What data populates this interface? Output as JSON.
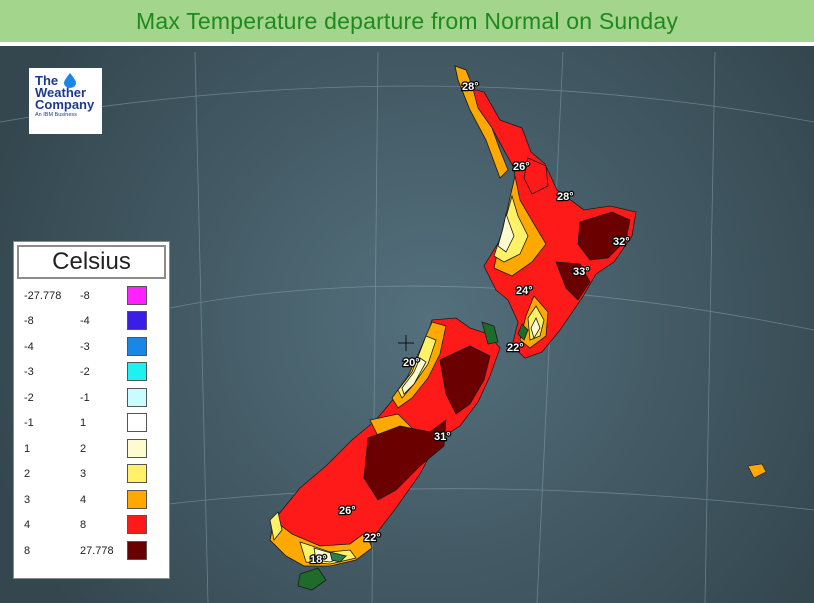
{
  "title": "Max Temperature departure from Normal on Sunday",
  "logo": {
    "line1": "The",
    "line2": "Weather",
    "line3": "Company",
    "subtitle": "An IBM Business",
    "icon": "water-drop-icon"
  },
  "legend": {
    "title": "Celsius",
    "rows": [
      {
        "min": "-27.778",
        "max": "-8",
        "color": "#ff22ff"
      },
      {
        "min": "-8",
        "max": "-4",
        "color": "#3a1ee6"
      },
      {
        "min": "-4",
        "max": "-3",
        "color": "#1a86e8"
      },
      {
        "min": "-3",
        "max": "-2",
        "color": "#1ff0f0"
      },
      {
        "min": "-2",
        "max": "-1",
        "color": "#c9fbff"
      },
      {
        "min": "-1",
        "max": "1",
        "color": "#ffffff"
      },
      {
        "min": "1",
        "max": "2",
        "color": "#fffbd0"
      },
      {
        "min": "2",
        "max": "3",
        "color": "#fff266"
      },
      {
        "min": "3",
        "max": "4",
        "color": "#ffa800"
      },
      {
        "min": "4",
        "max": "8",
        "color": "#ff1a1a"
      },
      {
        "min": "8",
        "max": "27.778",
        "color": "#6b0000"
      }
    ]
  },
  "temperatures": [
    {
      "label": "28°"
    },
    {
      "label": "26°"
    },
    {
      "label": "28°"
    },
    {
      "label": "32°"
    },
    {
      "label": "33°"
    },
    {
      "label": "24°"
    },
    {
      "label": "22°"
    },
    {
      "label": "20°"
    },
    {
      "label": "31°"
    },
    {
      "label": "26°"
    },
    {
      "label": "22°"
    },
    {
      "label": "18°"
    }
  ],
  "colors": {
    "ocean": "#415866",
    "title_bar": "#a3d58d",
    "title_text": "#1e8a1e"
  }
}
